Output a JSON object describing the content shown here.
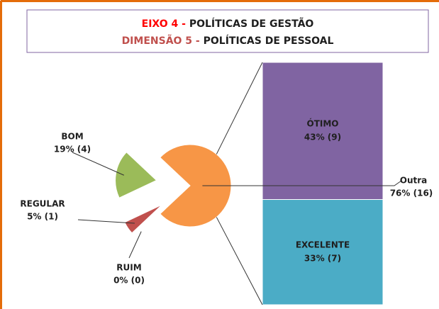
{
  "chart_data": {
    "type": "pie-of-bar",
    "title": [
      [
        "EIXO 4 - ",
        "POLÍTICAS DE GESTÃO"
      ],
      [
        "DIMENSÃO 5 - ",
        "POLÍTICAS DE PESSOAL"
      ]
    ],
    "categories": [
      "BOM",
      "REGULAR",
      "RUIM",
      "Outra"
    ],
    "values": [
      19,
      5,
      0,
      76
    ],
    "value_labels": [
      "19% (4)",
      "5% (1)",
      "0% (0)",
      "76% (16)"
    ],
    "colors": [
      "#9bbb59",
      "#c0504d",
      "#c0504d",
      "#f79646"
    ],
    "bar_categories": [
      "ÓTIMO",
      "EXCELENTE"
    ],
    "bar_values": [
      43,
      33
    ],
    "bar_value_labels": [
      "43% (9)",
      "33% (7)"
    ],
    "bar_colors": [
      "#8064a2",
      "#4bacc6"
    ]
  }
}
